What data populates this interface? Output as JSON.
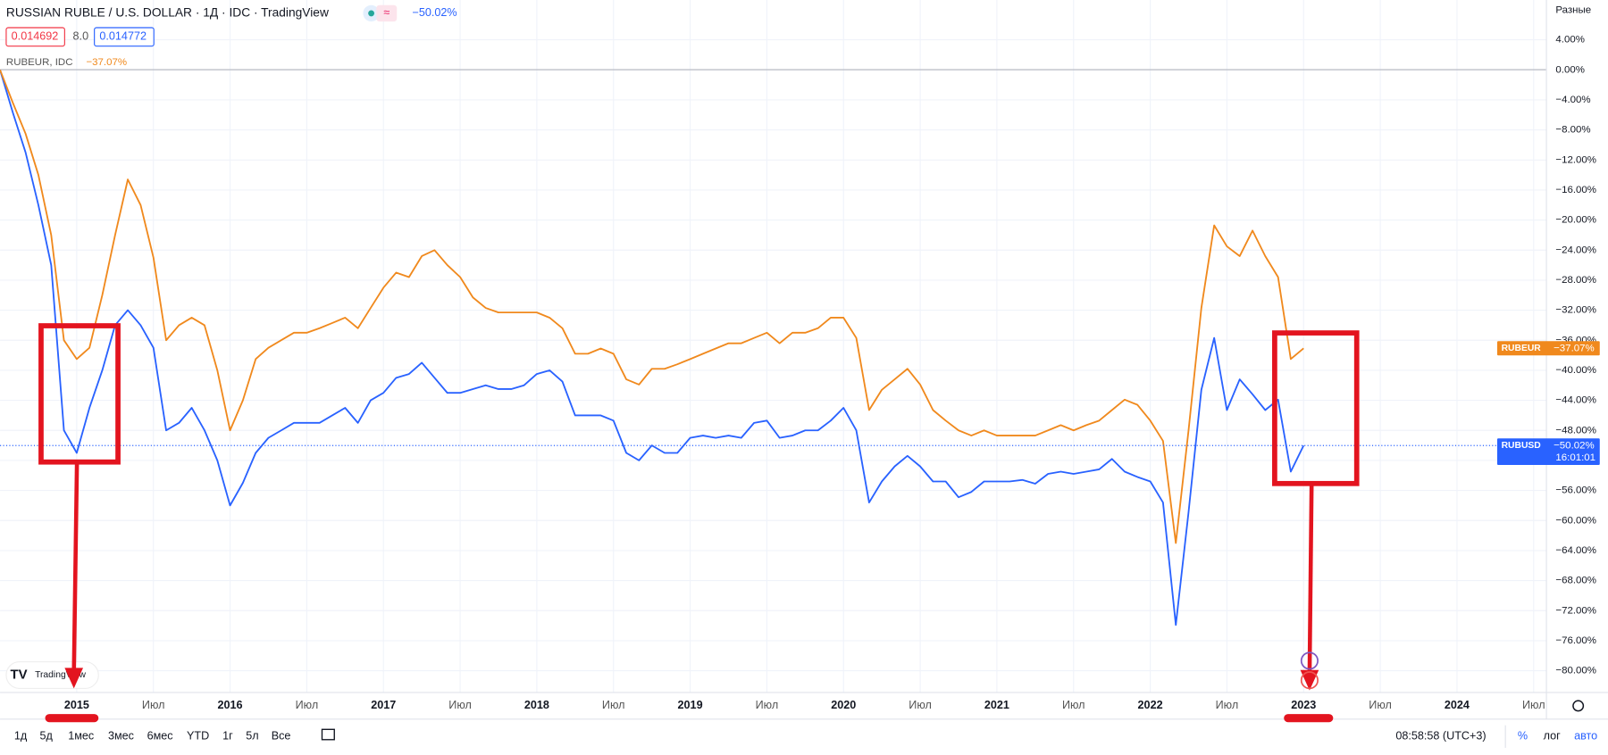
{
  "header": {
    "ohlc_low": "0.014692",
    "spread": "8.0",
    "ohlc_high": "0.014772",
    "compare_symbol": "RUBEUR, IDC",
    "scale_mode": "Разные",
    "logo": "TradingView"
  },
  "toolbar": {
    "ranges": [
      "1д",
      "5д",
      "1мес",
      "3мес",
      "6мес",
      "YTD",
      "1г",
      "5л",
      "Все"
    ],
    "clock": "08:58:58 (UTC+3)",
    "percent": "%",
    "log": "лог",
    "auto": "авто"
  },
  "chart_data": {
    "type": "line",
    "title": "RUSSIAN RUBLE / U.S. DOLLAR · 1Д · IDC · TradingView",
    "x": [
      "2014-07",
      "2014-08",
      "2014-09",
      "2014-10",
      "2014-11",
      "2014-12",
      "2015-01",
      "2015-02",
      "2015-03",
      "2015-04",
      "2015-05",
      "2015-06",
      "2015-07",
      "2015-08",
      "2015-09",
      "2015-10",
      "2015-11",
      "2015-12",
      "2016-01",
      "2016-02",
      "2016-03",
      "2016-04",
      "2016-05",
      "2016-06",
      "2016-07",
      "2016-08",
      "2016-09",
      "2016-10",
      "2016-11",
      "2016-12",
      "2017-01",
      "2017-02",
      "2017-03",
      "2017-04",
      "2017-05",
      "2017-06",
      "2017-07",
      "2017-08",
      "2017-09",
      "2017-10",
      "2017-11",
      "2017-12",
      "2018-01",
      "2018-02",
      "2018-03",
      "2018-04",
      "2018-05",
      "2018-06",
      "2018-07",
      "2018-08",
      "2018-09",
      "2018-10",
      "2018-11",
      "2018-12",
      "2019-01",
      "2019-02",
      "2019-03",
      "2019-04",
      "2019-05",
      "2019-06",
      "2019-07",
      "2019-08",
      "2019-09",
      "2019-10",
      "2019-11",
      "2019-12",
      "2020-01",
      "2020-02",
      "2020-03",
      "2020-04",
      "2020-05",
      "2020-06",
      "2020-07",
      "2020-08",
      "2020-09",
      "2020-10",
      "2020-11",
      "2020-12",
      "2021-01",
      "2021-02",
      "2021-03",
      "2021-04",
      "2021-05",
      "2021-06",
      "2021-07",
      "2021-08",
      "2021-09",
      "2021-10",
      "2021-11",
      "2021-12",
      "2022-01",
      "2022-02",
      "2022-03",
      "2022-04",
      "2022-05",
      "2022-06",
      "2022-07",
      "2022-08",
      "2022-09",
      "2022-10",
      "2022-11",
      "2022-12",
      "2023-01"
    ],
    "series": [
      {
        "name": "RUBUSD",
        "color": "#2962ff",
        "last_label": "−50.02%",
        "countdown": "16:01:01",
        "values": [
          0,
          -5.7,
          -11,
          -18,
          -26,
          -48,
          -51,
          -45,
          -40,
          -34,
          -32,
          -34,
          -37,
          -48,
          -47,
          -45,
          -48,
          -52,
          -58,
          -55,
          -51,
          -49,
          -48,
          -47,
          -47,
          -47,
          -46,
          -45,
          -47,
          -44,
          -43,
          -41,
          -40.5,
          -39,
          -41,
          -43,
          -43,
          -42.5,
          -42,
          -42.5,
          -42.5,
          -42,
          -40.5,
          -40,
          -41.5,
          -46,
          -46,
          -46,
          -46.7,
          -51,
          -52,
          -50,
          -51,
          -51,
          -49,
          -48.7,
          -49,
          -48.7,
          -49,
          -47,
          -46.7,
          -49,
          -48.7,
          -48,
          -48,
          -46.7,
          -45,
          -48,
          -57.6,
          -54.8,
          -52.8,
          -51.4,
          -52.8,
          -54.8,
          -54.8,
          -56.9,
          -56.2,
          -54.8,
          -54.8,
          -54.8,
          -54.6,
          -55.1,
          -53.8,
          -53.5,
          -53.8,
          -53.5,
          -53.2,
          -51.8,
          -53.5,
          -54.2,
          -54.8,
          -57.6,
          -73.9,
          -58.9,
          -42.6,
          -35.7,
          -45.3,
          -41.2,
          -43.2,
          -45.3,
          -43.9,
          -53.5,
          -50.02
        ]
      },
      {
        "name": "RUBEUR",
        "color": "#f0891d",
        "last_label": "−37.07%",
        "values": [
          0,
          -4.4,
          -8.5,
          -14,
          -22,
          -36,
          -38.5,
          -37,
          -30,
          -22,
          -14.6,
          -18,
          -25,
          -36,
          -34,
          -33,
          -34,
          -40,
          -48,
          -44,
          -38.5,
          -37,
          -36,
          -35,
          -35,
          -34.4,
          -33.7,
          -33,
          -34.4,
          -31.7,
          -29,
          -27,
          -27.6,
          -24.8,
          -24,
          -26,
          -27.6,
          -30.3,
          -31.7,
          -32.3,
          -32.3,
          -32.3,
          -32.3,
          -33,
          -34.4,
          -37.8,
          -37.8,
          -37.1,
          -37.8,
          -41.2,
          -41.9,
          -39.8,
          -39.8,
          -39.2,
          -38.5,
          -37.8,
          -37.1,
          -36.4,
          -36.4,
          -35.7,
          -35,
          -36.4,
          -35,
          -35,
          -34.4,
          -33,
          -33,
          -35.7,
          -45.3,
          -42.6,
          -41.2,
          -39.8,
          -41.9,
          -45.3,
          -46.7,
          -48,
          -48.7,
          -48,
          -48.7,
          -48.7,
          -48.7,
          -48.7,
          -48,
          -47.3,
          -48,
          -47.3,
          -46.7,
          -45.3,
          -43.9,
          -44.6,
          -46.7,
          -49.4,
          -63,
          -48,
          -31.7,
          -20.7,
          -23.5,
          -24.8,
          -21.4,
          -24.8,
          -27.6,
          -38.5,
          -37.07
        ]
      }
    ],
    "xlim": [
      "2014-07",
      "2024-08"
    ],
    "xticks": [
      {
        "value": "2015-01",
        "label": "2015"
      },
      {
        "value": "2015-07",
        "label": "Июл"
      },
      {
        "value": "2016-01",
        "label": "2016"
      },
      {
        "value": "2016-07",
        "label": "Июл"
      },
      {
        "value": "2017-01",
        "label": "2017"
      },
      {
        "value": "2017-07",
        "label": "Июл"
      },
      {
        "value": "2018-01",
        "label": "2018"
      },
      {
        "value": "2018-07",
        "label": "Июл"
      },
      {
        "value": "2019-01",
        "label": "2019"
      },
      {
        "value": "2019-07",
        "label": "Июл"
      },
      {
        "value": "2020-01",
        "label": "2020"
      },
      {
        "value": "2020-07",
        "label": "Июл"
      },
      {
        "value": "2021-01",
        "label": "2021"
      },
      {
        "value": "2021-07",
        "label": "Июл"
      },
      {
        "value": "2022-01",
        "label": "2022"
      },
      {
        "value": "2022-07",
        "label": "Июл"
      },
      {
        "value": "2023-01",
        "label": "2023"
      },
      {
        "value": "2023-07",
        "label": "Июл"
      },
      {
        "value": "2024-01",
        "label": "2024"
      },
      {
        "value": "2024-07",
        "label": "Июл"
      }
    ],
    "ylim": [
      -82.9,
      9.3
    ],
    "yticks": [
      {
        "value": 4,
        "label": "4.00%"
      },
      {
        "value": 0,
        "label": "0.00%"
      },
      {
        "value": -4,
        "label": "−4.00%"
      },
      {
        "value": -8,
        "label": "−8.00%"
      },
      {
        "value": -12,
        "label": "−12.00%"
      },
      {
        "value": -16,
        "label": "−16.00%"
      },
      {
        "value": -20,
        "label": "−20.00%"
      },
      {
        "value": -24,
        "label": "−24.00%"
      },
      {
        "value": -28,
        "label": "−28.00%"
      },
      {
        "value": -32,
        "label": "−32.00%"
      },
      {
        "value": -36,
        "label": "−36.00%"
      },
      {
        "value": -40,
        "label": "−40.00%"
      },
      {
        "value": -44,
        "label": "−44.00%"
      },
      {
        "value": -48,
        "label": "−48.00%"
      },
      {
        "value": -52,
        "label": "−52.00%"
      },
      {
        "value": -56,
        "label": "−56.00%"
      },
      {
        "value": -60,
        "label": "−60.00%"
      },
      {
        "value": -64,
        "label": "−64.00%"
      },
      {
        "value": -68,
        "label": "−68.00%"
      },
      {
        "value": -72,
        "label": "−72.00%"
      },
      {
        "value": -76,
        "label": "−76.00%"
      },
      {
        "value": -80,
        "label": "−80.00%"
      }
    ],
    "grid": true
  }
}
